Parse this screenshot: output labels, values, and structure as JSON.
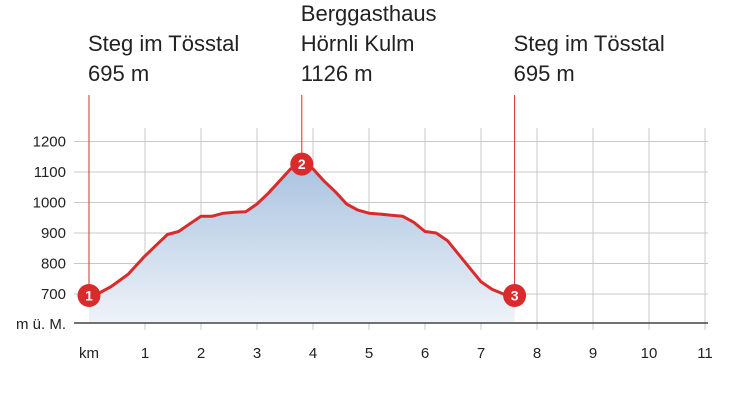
{
  "chart_data": {
    "type": "area",
    "title": "",
    "xlabel": "km",
    "ylabel": "m ü. M.",
    "xlim": [
      0,
      11.5
    ],
    "ylim": [
      620,
      1260
    ],
    "x_ticks": [
      1,
      2,
      3,
      4,
      5,
      6,
      7,
      8,
      9,
      10,
      11
    ],
    "y_ticks": [
      700,
      800,
      900,
      1000,
      1100,
      1200
    ],
    "grid": true,
    "series": [
      {
        "x": [
          0,
          0.2,
          0.4,
          0.7,
          1.0,
          1.2,
          1.4,
          1.6,
          1.8,
          2.0,
          2.2,
          2.4,
          2.6,
          2.8,
          3.0,
          3.2,
          3.4,
          3.6,
          3.8,
          4.0,
          4.2,
          4.4,
          4.6,
          4.8,
          5.0,
          5.2,
          5.4,
          5.6,
          5.8,
          6.0,
          6.2,
          6.4,
          6.6,
          6.8,
          7.0,
          7.2,
          7.4,
          7.6
        ],
        "values": [
          695,
          705,
          725,
          765,
          825,
          860,
          895,
          905,
          930,
          955,
          955,
          965,
          968,
          970,
          995,
          1030,
          1070,
          1110,
          1126,
          1110,
          1070,
          1035,
          995,
          975,
          965,
          962,
          958,
          955,
          935,
          905,
          900,
          875,
          830,
          785,
          740,
          715,
          700,
          695
        ]
      }
    ],
    "waypoints": [
      {
        "number": "1",
        "name": "Steg im Tösstal",
        "elevation": "695 m",
        "km": 0,
        "elev": 695
      },
      {
        "number": "2",
        "name": [
          "Berggasthaus",
          "Hörnli Kulm"
        ],
        "elevation": "1126 m",
        "km": 3.8,
        "elev": 1126
      },
      {
        "number": "3",
        "name": "Steg im Tösstal",
        "elevation": "695 m",
        "km": 7.6,
        "elev": 695
      }
    ],
    "colors": {
      "line": "#d92b2b",
      "marker": "#d92b2b",
      "fill_top": "#a9c3e0",
      "fill_bottom": "#eef3f9",
      "grid": "#c8c8c8",
      "axis": "#444444"
    }
  }
}
